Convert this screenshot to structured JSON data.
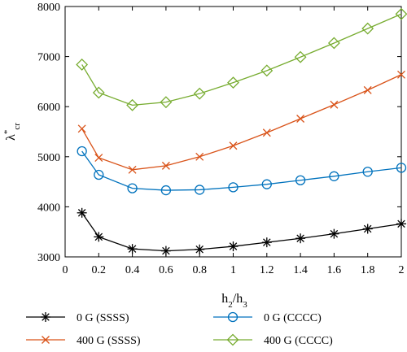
{
  "chart_data": {
    "type": "line",
    "xlabel": "h2/h3",
    "ylabel": "λ*cr",
    "xlim": [
      0,
      2
    ],
    "ylim": [
      3000,
      8000
    ],
    "x_ticks": [
      0,
      0.2,
      0.4,
      0.6,
      0.8,
      1,
      1.2,
      1.4,
      1.6,
      1.8,
      2
    ],
    "x_tick_labels": [
      "0",
      "0.2",
      "0.4",
      "0.6",
      "0.8",
      "1",
      "1.2",
      "1.4",
      "1.6",
      "1.8",
      "2"
    ],
    "y_ticks": [
      3000,
      4000,
      5000,
      6000,
      7000,
      8000
    ],
    "y_tick_labels": [
      "3000",
      "4000",
      "5000",
      "6000",
      "7000",
      "8000"
    ],
    "grid": false,
    "legend_position": "bottom",
    "x": [
      0.1,
      0.2,
      0.4,
      0.6,
      0.8,
      1.0,
      1.2,
      1.4,
      1.6,
      1.8,
      2.0
    ],
    "series": [
      {
        "name": "0 G (SSSS)",
        "color": "#000000",
        "marker": "asterisk",
        "values": [
          3880,
          3400,
          3160,
          3120,
          3150,
          3210,
          3290,
          3370,
          3460,
          3560,
          3660
        ]
      },
      {
        "name": "0 G (CCCC)",
        "color": "#0072BD",
        "marker": "circle",
        "values": [
          5110,
          4640,
          4370,
          4330,
          4340,
          4390,
          4450,
          4530,
          4610,
          4700,
          4780
        ]
      },
      {
        "name": "400 G (SSSS)",
        "color": "#D95319",
        "marker": "x",
        "values": [
          5560,
          4980,
          4740,
          4820,
          5000,
          5220,
          5480,
          5760,
          6040,
          6330,
          6640
        ]
      },
      {
        "name": "400 G (CCCC)",
        "color": "#77AC30",
        "marker": "diamond",
        "values": [
          6840,
          6280,
          6030,
          6090,
          6260,
          6480,
          6720,
          6990,
          7270,
          7560,
          7850
        ]
      }
    ]
  }
}
